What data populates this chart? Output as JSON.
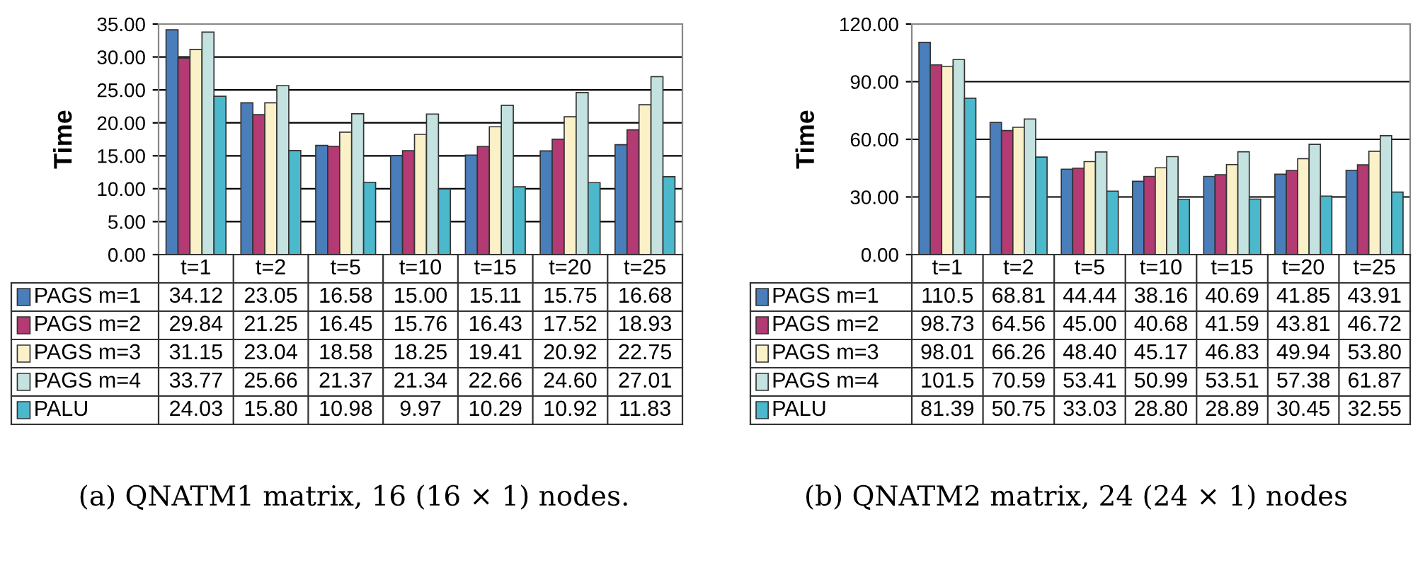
{
  "chart_data": [
    {
      "type": "bar",
      "ylabel": "Time",
      "categories": [
        "t=1",
        "t=2",
        "t=5",
        "t=10",
        "t=15",
        "t=20",
        "t=25"
      ],
      "series": [
        {
          "name": "PAGS m=1",
          "color": "#4a7ebb",
          "values": [
            34.12,
            23.05,
            16.58,
            15.0,
            15.11,
            15.75,
            16.68
          ],
          "value_labels": [
            "34.12",
            "23.05",
            "16.58",
            "15.00",
            "15.11",
            "15.75",
            "16.68"
          ]
        },
        {
          "name": "PAGS m=2",
          "color": "#b33a72",
          "values": [
            29.84,
            21.25,
            16.45,
            15.76,
            16.43,
            17.52,
            18.93
          ],
          "value_labels": [
            "29.84",
            "21.25",
            "16.45",
            "15.76",
            "16.43",
            "17.52",
            "18.93"
          ]
        },
        {
          "name": "PAGS m=3",
          "color": "#fbf1c8",
          "values": [
            31.15,
            23.04,
            18.58,
            18.25,
            19.41,
            20.92,
            22.75
          ],
          "value_labels": [
            "31.15",
            "23.04",
            "18.58",
            "18.25",
            "19.41",
            "20.92",
            "22.75"
          ]
        },
        {
          "name": "PAGS m=4",
          "color": "#c4e2df",
          "values": [
            33.77,
            25.66,
            21.37,
            21.34,
            22.66,
            24.6,
            27.01
          ],
          "value_labels": [
            "33.77",
            "25.66",
            "21.37",
            "21.34",
            "22.66",
            "24.60",
            "27.01"
          ]
        },
        {
          "name": "PALU",
          "color": "#4bb8cc",
          "values": [
            24.03,
            15.8,
            10.98,
            9.97,
            10.29,
            10.92,
            11.83
          ],
          "value_labels": [
            "24.03",
            "15.80",
            "10.98",
            "9.97",
            "10.29",
            "10.92",
            "11.83"
          ]
        }
      ],
      "ylim": [
        0,
        35
      ],
      "yticks": [
        {
          "value": 0,
          "label": "0.00"
        },
        {
          "value": 5,
          "label": "5.00"
        },
        {
          "value": 10,
          "label": "10.00"
        },
        {
          "value": 15,
          "label": "15.00"
        },
        {
          "value": 20,
          "label": "20.00"
        },
        {
          "value": 25,
          "label": "25.00"
        },
        {
          "value": 30,
          "label": "30.00"
        },
        {
          "value": 35,
          "label": "35.00"
        }
      ],
      "grid": "y",
      "legend": "bottom",
      "annotations": [
        "(a) QNATM1 matrix, 16 (16 × 1) nodes."
      ]
    },
    {
      "type": "bar",
      "ylabel": "Time",
      "categories": [
        "t=1",
        "t=2",
        "t=5",
        "t=10",
        "t=15",
        "t=20",
        "t=25"
      ],
      "series": [
        {
          "name": "PAGS m=1",
          "color": "#4a7ebb",
          "values": [
            110.5,
            68.81,
            44.44,
            38.16,
            40.69,
            41.85,
            43.91
          ],
          "value_labels": [
            "110.5",
            "68.81",
            "44.44",
            "38.16",
            "40.69",
            "41.85",
            "43.91"
          ]
        },
        {
          "name": "PAGS m=2",
          "color": "#b33a72",
          "values": [
            98.73,
            64.56,
            45.0,
            40.68,
            41.59,
            43.81,
            46.72
          ],
          "value_labels": [
            "98.73",
            "64.56",
            "45.00",
            "40.68",
            "41.59",
            "43.81",
            "46.72"
          ]
        },
        {
          "name": "PAGS m=3",
          "color": "#fbf1c8",
          "values": [
            98.01,
            66.26,
            48.4,
            45.17,
            46.83,
            49.94,
            53.8
          ],
          "value_labels": [
            "98.01",
            "66.26",
            "48.40",
            "45.17",
            "46.83",
            "49.94",
            "53.80"
          ]
        },
        {
          "name": "PAGS m=4",
          "color": "#c4e2df",
          "values": [
            101.5,
            70.59,
            53.41,
            50.99,
            53.51,
            57.38,
            61.87
          ],
          "value_labels": [
            "101.5",
            "70.59",
            "53.41",
            "50.99",
            "53.51",
            "57.38",
            "61.87"
          ]
        },
        {
          "name": "PALU",
          "color": "#4bb8cc",
          "values": [
            81.39,
            50.75,
            33.03,
            28.8,
            28.89,
            30.45,
            32.55
          ],
          "value_labels": [
            "81.39",
            "50.75",
            "33.03",
            "28.80",
            "28.89",
            "30.45",
            "32.55"
          ]
        }
      ],
      "ylim": [
        0,
        120
      ],
      "yticks": [
        {
          "value": 0,
          "label": "0.00"
        },
        {
          "value": 30,
          "label": "30.00"
        },
        {
          "value": 60,
          "label": "60.00"
        },
        {
          "value": 90,
          "label": "90.00"
        },
        {
          "value": 120,
          "label": "120.00"
        }
      ],
      "grid": "y",
      "legend": "bottom",
      "annotations": [
        "(b) QNATM2 matrix, 24 (24 × 1) nodes"
      ]
    }
  ]
}
